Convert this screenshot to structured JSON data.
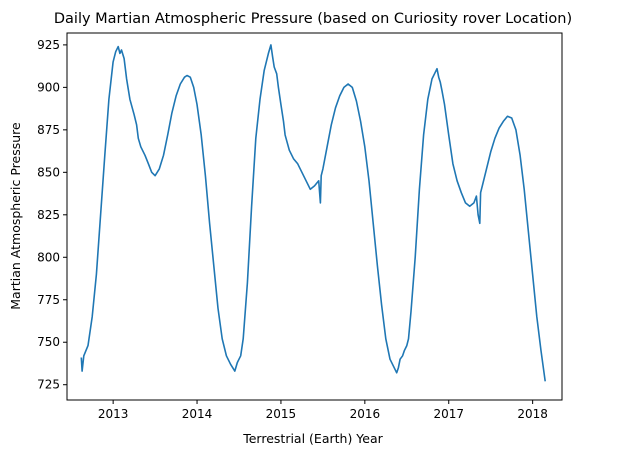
{
  "chart_data": {
    "type": "line",
    "title": "Daily Martian Atmospheric Pressure (based on Curiosity rover Location)",
    "xlabel": "Terrestrial (Earth) Year",
    "ylabel": "Martian Atmospheric Pressure",
    "xlim": [
      2012.45,
      2018.35
    ],
    "ylim": [
      716,
      932
    ],
    "x_ticks": [
      2013,
      2014,
      2015,
      2016,
      2017,
      2018
    ],
    "y_ticks": [
      725,
      750,
      775,
      800,
      825,
      850,
      875,
      900,
      925
    ],
    "grid": false,
    "line_color": "#1f77b4",
    "series": [
      {
        "x": [
          2012.62,
          2012.63,
          2012.65,
          2012.7,
          2012.75,
          2012.8,
          2012.85,
          2012.9,
          2012.95,
          2013.0,
          2013.03,
          2013.06,
          2013.08,
          2013.1,
          2013.13,
          2013.16,
          2013.2,
          2013.25,
          2013.28,
          2013.3,
          2013.33,
          2013.38,
          2013.42,
          2013.46,
          2013.5,
          2013.55,
          2013.6,
          2013.65,
          2013.7,
          2013.75,
          2013.8,
          2013.85,
          2013.88,
          2013.92,
          2013.96,
          2014.0,
          2014.05,
          2014.1,
          2014.15,
          2014.2,
          2014.25,
          2014.3,
          2014.35,
          2014.4,
          2014.45,
          2014.48,
          2014.5,
          2014.52,
          2014.55,
          2014.6,
          2014.65,
          2014.7,
          2014.75,
          2014.8,
          2014.85,
          2014.88,
          2014.9,
          2014.92,
          2014.95,
          2014.97,
          2015.0,
          2015.03,
          2015.05,
          2015.1,
          2015.15,
          2015.2,
          2015.25,
          2015.3,
          2015.35,
          2015.4,
          2015.45,
          2015.47,
          2015.48,
          2015.5,
          2015.55,
          2015.6,
          2015.65,
          2015.7,
          2015.75,
          2015.8,
          2015.85,
          2015.9,
          2015.95,
          2016.0,
          2016.05,
          2016.1,
          2016.15,
          2016.2,
          2016.25,
          2016.3,
          2016.35,
          2016.38,
          2016.4,
          2016.42,
          2016.45,
          2016.47,
          2016.5,
          2016.52,
          2016.55,
          2016.6,
          2016.65,
          2016.7,
          2016.75,
          2016.8,
          2016.83,
          2016.86,
          2016.88,
          2016.9,
          2016.92,
          2016.95,
          2017.0,
          2017.05,
          2017.1,
          2017.15,
          2017.2,
          2017.25,
          2017.3,
          2017.33,
          2017.35,
          2017.37,
          2017.38,
          2017.4,
          2017.45,
          2017.5,
          2017.55,
          2017.6,
          2017.65,
          2017.7,
          2017.75,
          2017.8,
          2017.85,
          2017.9,
          2017.95,
          2018.0,
          2018.05,
          2018.1,
          2018.15
        ],
        "values": [
          741,
          733,
          742,
          748,
          765,
          790,
          825,
          860,
          893,
          915,
          921,
          924,
          920,
          922,
          917,
          905,
          893,
          884,
          878,
          870,
          865,
          860,
          855,
          850,
          848,
          852,
          860,
          872,
          885,
          895,
          902,
          906,
          907,
          906,
          900,
          890,
          872,
          848,
          820,
          795,
          770,
          752,
          742,
          737,
          733,
          738,
          740,
          742,
          752,
          785,
          830,
          870,
          893,
          910,
          920,
          925,
          918,
          912,
          908,
          900,
          890,
          880,
          872,
          863,
          858,
          855,
          850,
          845,
          840,
          842,
          845,
          832,
          848,
          852,
          865,
          878,
          888,
          895,
          900,
          902,
          900,
          892,
          880,
          865,
          845,
          820,
          795,
          772,
          752,
          740,
          735,
          732,
          735,
          740,
          742,
          745,
          748,
          752,
          768,
          800,
          840,
          872,
          893,
          905,
          908,
          911,
          906,
          903,
          898,
          890,
          872,
          855,
          845,
          838,
          832,
          830,
          832,
          836,
          825,
          820,
          838,
          842,
          852,
          862,
          870,
          876,
          880,
          883,
          882,
          875,
          860,
          840,
          815,
          790,
          765,
          745,
          727
        ]
      }
    ]
  }
}
